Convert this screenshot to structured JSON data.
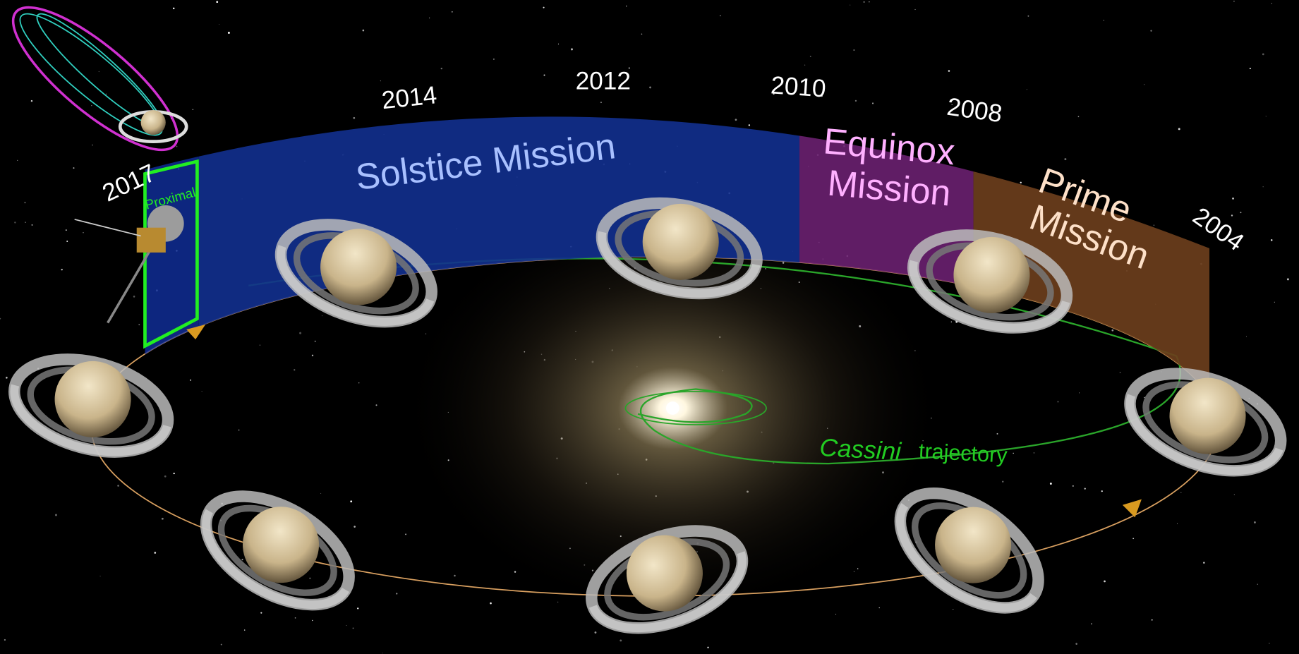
{
  "years": [
    "2017",
    "2014",
    "2012",
    "2010",
    "2008",
    "2004"
  ],
  "missions": {
    "proximal": "Proximal",
    "solstice": "Solstice Mission",
    "equinox": [
      "Equinox",
      "Mission"
    ],
    "prime": [
      "Prime",
      "Mission"
    ]
  },
  "trajectory": {
    "name": "Cassini",
    "label": "trajectory"
  }
}
